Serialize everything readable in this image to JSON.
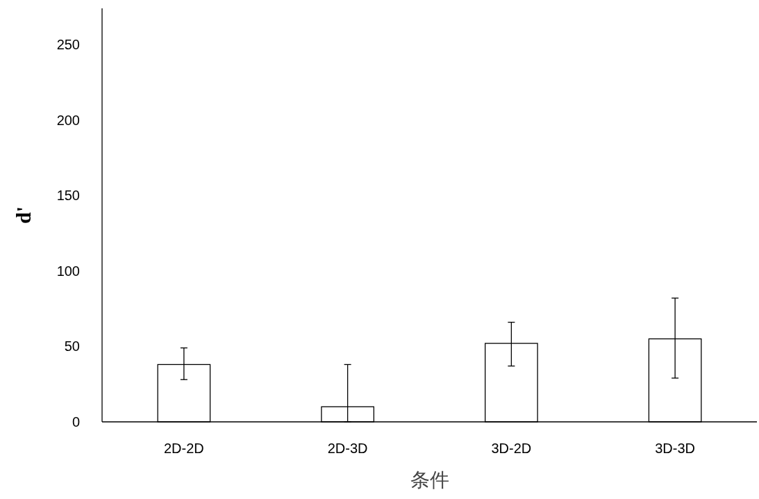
{
  "chart_data": {
    "type": "bar",
    "xlabel": "条件",
    "ylabel": "d'",
    "categories": [
      "2D-2D",
      "2D-3D",
      "3D-2D",
      "3D-3D"
    ],
    "values": [
      38,
      10,
      52,
      55
    ],
    "errors": [
      [
        28,
        49
      ],
      [
        0,
        38
      ],
      [
        37,
        66
      ],
      [
        29,
        82
      ]
    ],
    "color": "#ffffff",
    "ylim": [
      0,
      274
    ],
    "yticks": [
      0,
      50,
      100,
      150,
      200,
      250
    ],
    "grid": false
  }
}
